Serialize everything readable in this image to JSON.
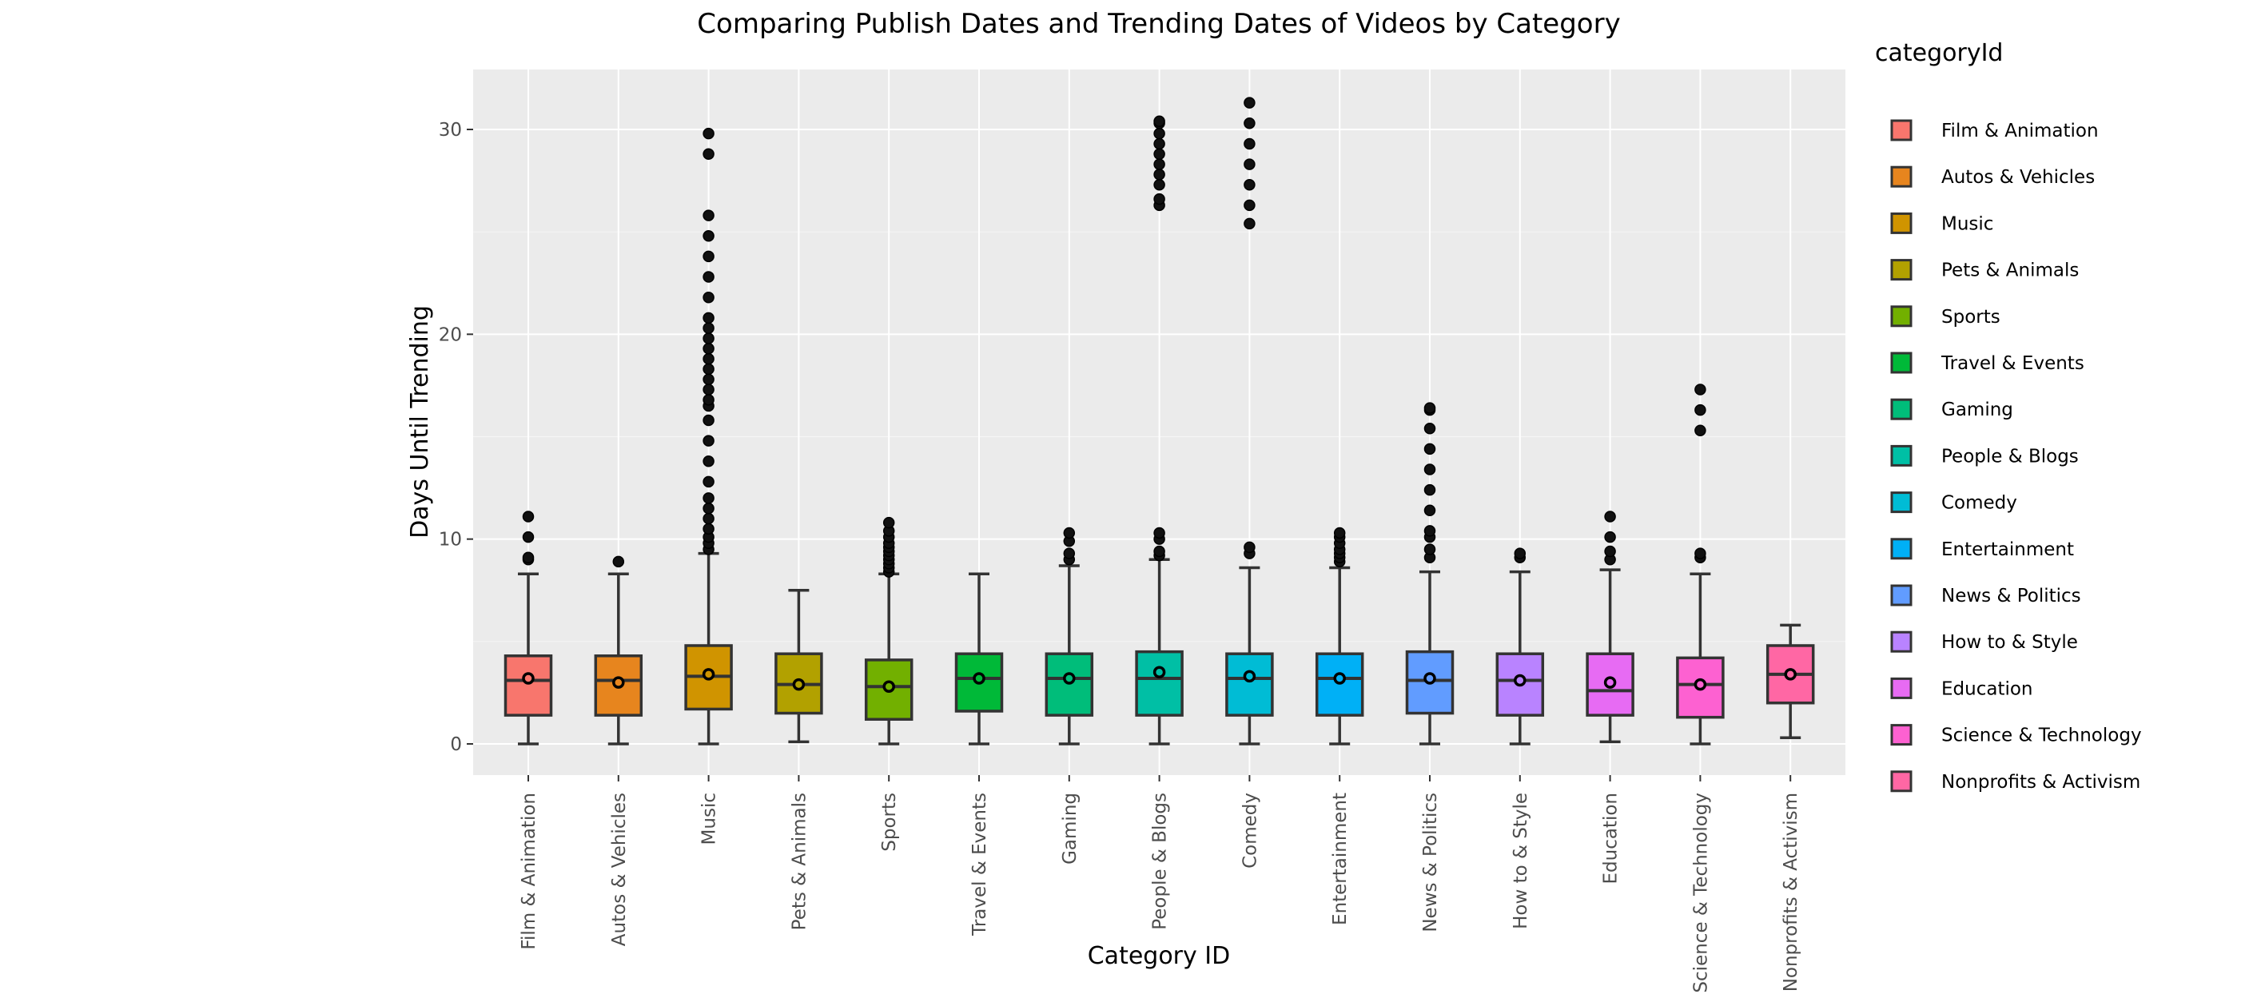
{
  "chart_data": {
    "type": "box",
    "title": "Comparing Publish Dates and Trending Dates of Videos by Category",
    "xlabel": "Category ID",
    "ylabel": "Days Until Trending",
    "ylim": [
      -1.6,
      32.9
    ],
    "yticks": [
      0,
      10,
      20,
      30
    ],
    "grid": true,
    "legend": {
      "title": "categoryId",
      "placement": "right"
    },
    "categories": [
      {
        "name": "Film & Animation",
        "color": "#F8766D",
        "min": 0,
        "q1": 1.4,
        "median": 3.1,
        "q3": 4.3,
        "max": 8.3,
        "mean": 3.2,
        "outliers": [
          9.0,
          9.1,
          10.1,
          11.1
        ]
      },
      {
        "name": "Autos & Vehicles",
        "color": "#E7851E",
        "min": 0,
        "q1": 1.4,
        "median": 3.1,
        "q3": 4.3,
        "max": 8.3,
        "mean": 3.0,
        "outliers": [
          8.9
        ]
      },
      {
        "name": "Music",
        "color": "#D09400",
        "min": 0,
        "q1": 1.7,
        "median": 3.3,
        "q3": 4.8,
        "max": 9.3,
        "mean": 3.4,
        "outliers": [
          9.5,
          9.8,
          10.1,
          10.5,
          11.0,
          11.5,
          12.0,
          12.8,
          13.8,
          14.8,
          15.8,
          16.5,
          16.8,
          17.3,
          17.8,
          18.3,
          18.8,
          19.3,
          19.8,
          20.3,
          20.8,
          21.8,
          22.8,
          23.8,
          24.8,
          25.8,
          28.8,
          29.8
        ]
      },
      {
        "name": "Pets & Animals",
        "color": "#B2A100",
        "min": 0.1,
        "q1": 1.5,
        "median": 2.9,
        "q3": 4.4,
        "max": 7.5,
        "mean": 2.9,
        "outliers": []
      },
      {
        "name": "Sports",
        "color": "#72B000",
        "min": 0,
        "q1": 1.2,
        "median": 2.8,
        "q3": 4.1,
        "max": 8.3,
        "mean": 2.8,
        "outliers": [
          8.4,
          8.6,
          8.8,
          9.0,
          9.2,
          9.4,
          9.6,
          9.8,
          10.1,
          10.4,
          10.8
        ]
      },
      {
        "name": "Travel & Events",
        "color": "#00B938",
        "min": 0,
        "q1": 1.6,
        "median": 3.2,
        "q3": 4.4,
        "max": 8.3,
        "mean": 3.2,
        "outliers": []
      },
      {
        "name": "Gaming",
        "color": "#00BD7A",
        "min": 0,
        "q1": 1.4,
        "median": 3.2,
        "q3": 4.4,
        "max": 8.7,
        "mean": 3.2,
        "outliers": [
          9.0,
          9.3,
          9.9,
          10.3
        ]
      },
      {
        "name": "People & Blogs",
        "color": "#00BFA5",
        "min": 0,
        "q1": 1.4,
        "median": 3.2,
        "q3": 4.5,
        "max": 9.0,
        "mean": 3.5,
        "outliers": [
          9.2,
          9.4,
          10.0,
          10.3,
          26.3,
          26.6,
          27.3,
          27.8,
          28.3,
          28.8,
          29.3,
          29.8,
          30.3,
          30.4
        ]
      },
      {
        "name": "Comedy",
        "color": "#00BCD5",
        "min": 0,
        "q1": 1.4,
        "median": 3.2,
        "q3": 4.4,
        "max": 8.6,
        "mean": 3.3,
        "outliers": [
          9.3,
          9.6,
          25.4,
          26.3,
          27.3,
          28.3,
          29.3,
          30.3,
          31.3
        ]
      },
      {
        "name": "Entertainment",
        "color": "#00B0F6",
        "min": 0,
        "q1": 1.4,
        "median": 3.2,
        "q3": 4.4,
        "max": 8.6,
        "mean": 3.2,
        "outliers": [
          8.9,
          9.1,
          9.3,
          9.5,
          9.8,
          10.1,
          10.3
        ]
      },
      {
        "name": "News & Politics",
        "color": "#619CFF",
        "min": 0,
        "q1": 1.5,
        "median": 3.1,
        "q3": 4.5,
        "max": 8.4,
        "mean": 3.2,
        "outliers": [
          9.1,
          9.5,
          10.1,
          10.4,
          11.4,
          12.4,
          13.4,
          14.4,
          15.4,
          16.3,
          16.4
        ]
      },
      {
        "name": "How to & Style",
        "color": "#B983FF",
        "min": 0,
        "q1": 1.4,
        "median": 3.1,
        "q3": 4.4,
        "max": 8.4,
        "mean": 3.1,
        "outliers": [
          9.1,
          9.3
        ]
      },
      {
        "name": "Education",
        "color": "#E76BF3",
        "min": 0.1,
        "q1": 1.4,
        "median": 2.6,
        "q3": 4.4,
        "max": 8.5,
        "mean": 3.0,
        "outliers": [
          9.0,
          9.4,
          10.1,
          11.1
        ]
      },
      {
        "name": "Science & Technology",
        "color": "#FD61D1",
        "min": 0,
        "q1": 1.3,
        "median": 2.9,
        "q3": 4.2,
        "max": 8.3,
        "mean": 2.9,
        "outliers": [
          9.1,
          9.3,
          15.3,
          16.3,
          17.3
        ]
      },
      {
        "name": "Nonprofits & Activism",
        "color": "#FF67A4",
        "min": 0.3,
        "q1": 2.0,
        "median": 3.4,
        "q3": 4.8,
        "max": 5.8,
        "mean": 3.4,
        "outliers": []
      }
    ]
  }
}
